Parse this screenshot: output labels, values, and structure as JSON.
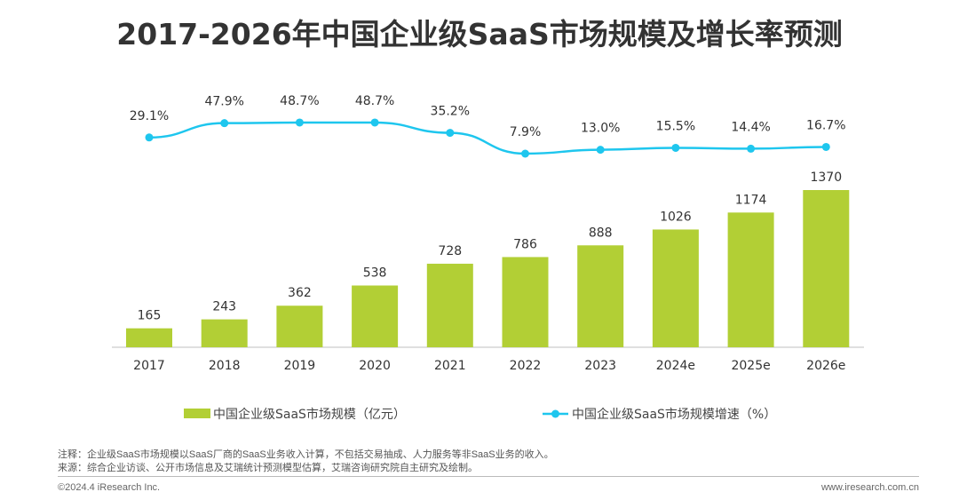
{
  "title": "2017-2026年中国企业级SaaS市场规模及增长率预测",
  "chart_data": {
    "type": "bar+line",
    "title": "2017-2026年中国企业级SaaS市场规模及增长率预测",
    "categories": [
      "2017",
      "2018",
      "2019",
      "2020",
      "2021",
      "2022",
      "2023",
      "2024e",
      "2025e",
      "2026e"
    ],
    "series": [
      {
        "name": "中国企业级SaaS市场规模（亿元）",
        "type": "bar",
        "color": "#b2cf35",
        "values": [
          165,
          243,
          362,
          538,
          728,
          786,
          888,
          1026,
          1174,
          1370
        ]
      },
      {
        "name": "中国企业级SaaS市场规模增速（%）",
        "type": "line",
        "color": "#1ec6ee",
        "values": [
          29.1,
          47.9,
          48.7,
          48.7,
          35.2,
          7.9,
          13.0,
          15.5,
          14.4,
          16.7
        ],
        "labels": [
          "29.1%",
          "47.9%",
          "48.7%",
          "48.7%",
          "35.2%",
          "7.9%",
          "13.0%",
          "15.5%",
          "14.4%",
          "16.7%"
        ]
      }
    ],
    "legend_position": "bottom",
    "grid": false
  },
  "notes": {
    "note": "注释：企业级SaaS市场规模以SaaS厂商的SaaS业务收入计算，不包括交易抽成、人力服务等非SaaS业务的收入。",
    "source": "来源：综合企业访谈、公开市场信息及艾瑞统计预测模型估算，艾瑞咨询研究院自主研究及绘制。"
  },
  "footer": {
    "copyright": "©2024.4 iResearch Inc.",
    "website": "www.iresearch.com.cn"
  }
}
